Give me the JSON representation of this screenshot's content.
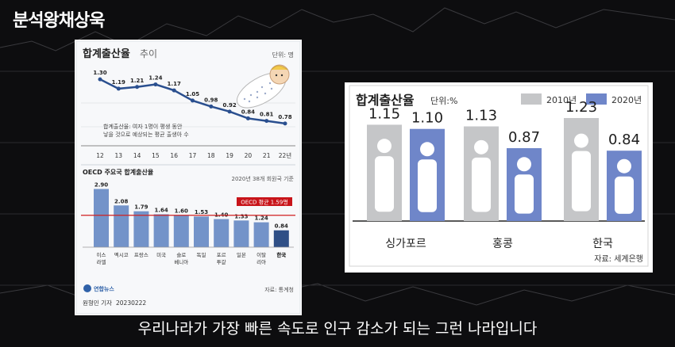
{
  "channel_name": "분석왕채상욱",
  "subtitle": "우리나라가 가장 빠른 속도로 인구 감소가 되는 그런 나라입니다",
  "left_panel": {
    "title_bold": "합계출산율",
    "title_light": "추이",
    "unit": "단위: 명",
    "definition_line1": "합계출산율: 여자 1명이 평생 동안",
    "definition_line2": "낳을 것으로 예상되는 평균 출생아 수",
    "oecd_title": "OECD 주요국 합계출산율",
    "oecd_note": "2020년 38개 회원국 기준",
    "oecd_avg_label": "OECD 평균 1.59명",
    "source": "자료: 통계청",
    "agency": "연합뉴스",
    "reporter": "원형민 기자",
    "date": "20230222"
  },
  "right_panel": {
    "title": "합계출산율",
    "unit": "단위:%",
    "source": "자료: 세계은행"
  },
  "colors": {
    "line": "#2a4f8f",
    "bar_blue": "#7393c9",
    "bar_korea": "#2f4f86",
    "avg_line": "#d11f1f",
    "gray_bar": "#c5c6c8",
    "blue_bar_right": "#6f86c9"
  },
  "chart_data": [
    {
      "type": "line",
      "title": "합계출산율 추이",
      "categories": [
        "12",
        "13",
        "14",
        "15",
        "16",
        "17",
        "18",
        "19",
        "20",
        "21",
        "22년"
      ],
      "values": [
        1.3,
        1.19,
        1.21,
        1.24,
        1.17,
        1.05,
        0.98,
        0.92,
        0.84,
        0.81,
        0.78
      ],
      "value_labels": [
        "1.30",
        "1.19",
        "1.21",
        "1.24",
        "1.17",
        "1.05",
        "0.98",
        "0.92",
        "0.84",
        "0.81",
        "0.78"
      ],
      "ylim": [
        0.7,
        1.35
      ]
    },
    {
      "type": "bar",
      "title": "OECD 주요국 합계출산율",
      "categories": [
        "이스\n라엘",
        "멕시코",
        "프랑스",
        "미국",
        "슬로\n베니아",
        "독일",
        "포르\n투갈",
        "일본",
        "이탈\n리아",
        "한국"
      ],
      "values": [
        2.9,
        2.08,
        1.79,
        1.64,
        1.6,
        1.53,
        1.4,
        1.33,
        1.24,
        0.84
      ],
      "value_labels": [
        "2.90",
        "2.08",
        "1.79",
        "1.64",
        "1.60",
        "1.53",
        "1.40",
        "1.33",
        "1.24",
        "0.84"
      ],
      "reference_line": 1.59,
      "ylim": [
        0,
        3.0
      ]
    },
    {
      "type": "bar",
      "title": "합계출산율",
      "categories": [
        "싱가포르",
        "홍콩",
        "한국"
      ],
      "series": [
        {
          "name": "2010년",
          "values": [
            1.15,
            1.13,
            1.23
          ],
          "value_labels": [
            "1.15",
            "1.13",
            "1.23"
          ]
        },
        {
          "name": "2020년",
          "values": [
            1.1,
            0.87,
            0.84
          ],
          "value_labels": [
            "1.10",
            "0.87",
            "0.84"
          ]
        }
      ],
      "ylim": [
        0,
        1.4
      ],
      "legend": "top-right"
    }
  ]
}
